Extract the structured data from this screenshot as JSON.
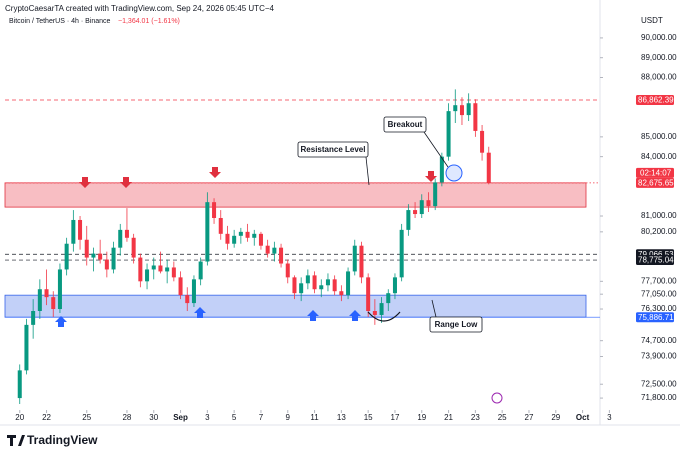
{
  "chart_data": {
    "type": "candlestick",
    "title": "CryptoCaesarTA created with TradingView.com, Sep 24, 2026 05:45 UTC−4",
    "symbol": "Bitcoin / TetherUS · 4h · Binance",
    "change": "−1,364.01 (−1.61%)",
    "currency": "USDT",
    "brand": "TradingView",
    "annotations": [
      "Resistance Level",
      "Breakout",
      "Range Low"
    ],
    "up_color": "#089981",
    "down_color": "#f23645",
    "x": [
      20,
      20.5,
      21,
      21.5,
      22,
      22.5,
      23,
      23.5,
      24,
      24.5,
      25,
      25.5,
      26,
      26.5,
      27,
      27.5,
      28,
      28.5,
      29,
      29.5,
      30,
      30.5,
      31,
      31.5,
      32,
      32.5,
      33,
      33.5,
      34,
      34.5,
      35,
      35.5,
      36,
      36.5,
      37,
      37.5,
      38,
      38.5,
      39,
      39.5,
      40,
      40.5,
      41,
      41.5,
      42,
      42.5,
      43,
      43.5,
      44,
      44.5,
      45,
      45.5,
      46,
      46.5,
      47,
      47.5,
      48,
      48.5,
      49,
      49.5,
      50,
      50.5,
      51,
      51.5,
      52,
      52.5,
      53,
      53.5,
      54,
      54.5,
      55
    ],
    "candles": [
      [
        71800,
        73500,
        71500,
        73200
      ],
      [
        73200,
        75800,
        73000,
        75500
      ],
      [
        75500,
        76800,
        74800,
        76200
      ],
      [
        76200,
        77800,
        75800,
        77300
      ],
      [
        77300,
        78300,
        76500,
        76900
      ],
      [
        76900,
        77200,
        75900,
        76300
      ],
      [
        76300,
        78600,
        76100,
        78300
      ],
      [
        78300,
        79900,
        78000,
        79600
      ],
      [
        79600,
        81300,
        79200,
        80800
      ],
      [
        80800,
        81000,
        79300,
        79800
      ],
      [
        79800,
        80500,
        78500,
        78900
      ],
      [
        78900,
        79400,
        78200,
        79100
      ],
      [
        79100,
        79800,
        78600,
        78800
      ],
      [
        78800,
        79200,
        77900,
        78300
      ],
      [
        78300,
        79700,
        78100,
        79400
      ],
      [
        79400,
        80600,
        79000,
        80300
      ],
      [
        80300,
        81400,
        79700,
        79900
      ],
      [
        79900,
        80100,
        78600,
        78900
      ],
      [
        78900,
        79100,
        77400,
        77700
      ],
      [
        77700,
        78600,
        77300,
        78300
      ],
      [
        78300,
        78900,
        77800,
        78500
      ],
      [
        78500,
        79200,
        78100,
        78200
      ],
      [
        78200,
        78800,
        77600,
        78400
      ],
      [
        78400,
        78700,
        77700,
        77900
      ],
      [
        77900,
        78200,
        76800,
        77000
      ],
      [
        77000,
        77400,
        76200,
        76600
      ],
      [
        76600,
        78000,
        76400,
        77800
      ],
      [
        77800,
        78900,
        77500,
        78700
      ],
      [
        78700,
        82200,
        78500,
        81700
      ],
      [
        81700,
        81900,
        80600,
        80900
      ],
      [
        80900,
        81300,
        79800,
        80100
      ],
      [
        80100,
        80500,
        79300,
        79600
      ],
      [
        79600,
        80300,
        79400,
        80000
      ],
      [
        80000,
        80400,
        79600,
        80200
      ],
      [
        80200,
        80600,
        79700,
        79900
      ],
      [
        79900,
        80300,
        79500,
        80100
      ],
      [
        80100,
        80200,
        79300,
        79500
      ],
      [
        79500,
        79800,
        78900,
        79100
      ],
      [
        79100,
        79700,
        78700,
        79400
      ],
      [
        79400,
        79600,
        78400,
        78600
      ],
      [
        78600,
        78800,
        77600,
        77900
      ],
      [
        77900,
        78000,
        76800,
        77100
      ],
      [
        77100,
        77900,
        76700,
        77600
      ],
      [
        77600,
        78300,
        77300,
        78000
      ],
      [
        78000,
        78200,
        77100,
        77300
      ],
      [
        77300,
        77800,
        76900,
        77500
      ],
      [
        77500,
        78100,
        77200,
        77800
      ],
      [
        77800,
        78000,
        77000,
        77200
      ],
      [
        77200,
        77500,
        76700,
        77000
      ],
      [
        77000,
        78400,
        76800,
        78200
      ],
      [
        78200,
        79800,
        78000,
        79500
      ],
      [
        79500,
        79700,
        77600,
        77900
      ],
      [
        77900,
        78100,
        75900,
        76200
      ],
      [
        76200,
        76800,
        75500,
        76000
      ],
      [
        76000,
        76900,
        75600,
        76600
      ],
      [
        76600,
        77300,
        76200,
        77100
      ],
      [
        77100,
        78100,
        76800,
        77900
      ],
      [
        77900,
        80600,
        77700,
        80300
      ],
      [
        80300,
        81600,
        80000,
        81300
      ],
      [
        81300,
        81700,
        80900,
        81100
      ],
      [
        81100,
        82100,
        80900,
        81800
      ],
      [
        81800,
        82200,
        81200,
        81500
      ],
      [
        81500,
        82900,
        81300,
        82700
      ],
      [
        82700,
        84200,
        82500,
        84000
      ],
      [
        84000,
        86700,
        83800,
        86300
      ],
      [
        86300,
        87400,
        85700,
        86600
      ],
      [
        86600,
        87000,
        85600,
        86100
      ],
      [
        86100,
        87200,
        85800,
        86700
      ],
      [
        86700,
        86900,
        85000,
        85300
      ],
      [
        85300,
        85600,
        83800,
        84200
      ],
      [
        84200,
        84500,
        82600,
        82676
      ]
    ],
    "xlim": [
      18.9,
      63.3
    ],
    "ylim": [
      71450,
      90400
    ],
    "xticks": [
      {
        "value": 20,
        "label": "20"
      },
      {
        "value": 22,
        "label": "22"
      },
      {
        "value": 25,
        "label": "25"
      },
      {
        "value": 28,
        "label": "28"
      },
      {
        "value": 30,
        "label": "30"
      },
      {
        "value": 32,
        "label": "Sep"
      },
      {
        "value": 34,
        "label": "3"
      },
      {
        "value": 36,
        "label": "5"
      },
      {
        "value": 38,
        "label": "7"
      },
      {
        "value": 40,
        "label": "9"
      },
      {
        "value": 42,
        "label": "11"
      },
      {
        "value": 44,
        "label": "13"
      },
      {
        "value": 46,
        "label": "15"
      },
      {
        "value": 48,
        "label": "17"
      },
      {
        "value": 50,
        "label": "19"
      },
      {
        "value": 52,
        "label": "21"
      },
      {
        "value": 54,
        "label": "23"
      },
      {
        "value": 56,
        "label": "25"
      },
      {
        "value": 58,
        "label": "27"
      },
      {
        "value": 60,
        "label": "29"
      },
      {
        "value": 62,
        "label": "Oct"
      },
      {
        "value": 64,
        "label": "3"
      }
    ],
    "yticks": [
      {
        "value": 90000,
        "label": "90,000.00"
      },
      {
        "value": 89000,
        "label": "89,000.00"
      },
      {
        "value": 88000,
        "label": "88,000.00"
      },
      {
        "value": 85000,
        "label": "85,000.00"
      },
      {
        "value": 84000,
        "label": "84,000.00"
      },
      {
        "value": 81000,
        "label": "81,000.00"
      },
      {
        "value": 80200,
        "label": "80,200.00"
      },
      {
        "value": 77700,
        "label": "77,700.00"
      },
      {
        "value": 77050,
        "label": "77,050.00"
      },
      {
        "value": 76300,
        "label": "76,300.00"
      },
      {
        "value": 74700,
        "label": "74,700.00"
      },
      {
        "value": 73900,
        "label": "73,900.00"
      },
      {
        "value": 72500,
        "label": "72,500.00"
      },
      {
        "value": 71800,
        "label": "71,800.00"
      }
    ],
    "zones": [
      {
        "low": 81450,
        "high": 82676,
        "color": "#f7b3b8",
        "border": "#e0303e"
      },
      {
        "low": 75886,
        "high": 77000,
        "color": "#b7c8f7",
        "border": "#3563e9"
      }
    ],
    "price_lines": [
      {
        "value": 86862.39,
        "label": "86,862.39",
        "color": "#f23645",
        "style": "dashed"
      },
      {
        "value": 82675.65,
        "label": "82,675.65",
        "color": "#f23645",
        "style": "dotted"
      },
      {
        "value": 79066.53,
        "label": "79,066.53",
        "color": "#131722",
        "style": "dashed"
      },
      {
        "value": 78775.04,
        "label": "78,775.04",
        "color": "#131722",
        "style": "dashed"
      },
      {
        "value": 75886.71,
        "label": "75,886.71",
        "color": "#2962ff",
        "style": "solid"
      }
    ],
    "countdown": "02:14:07"
  }
}
